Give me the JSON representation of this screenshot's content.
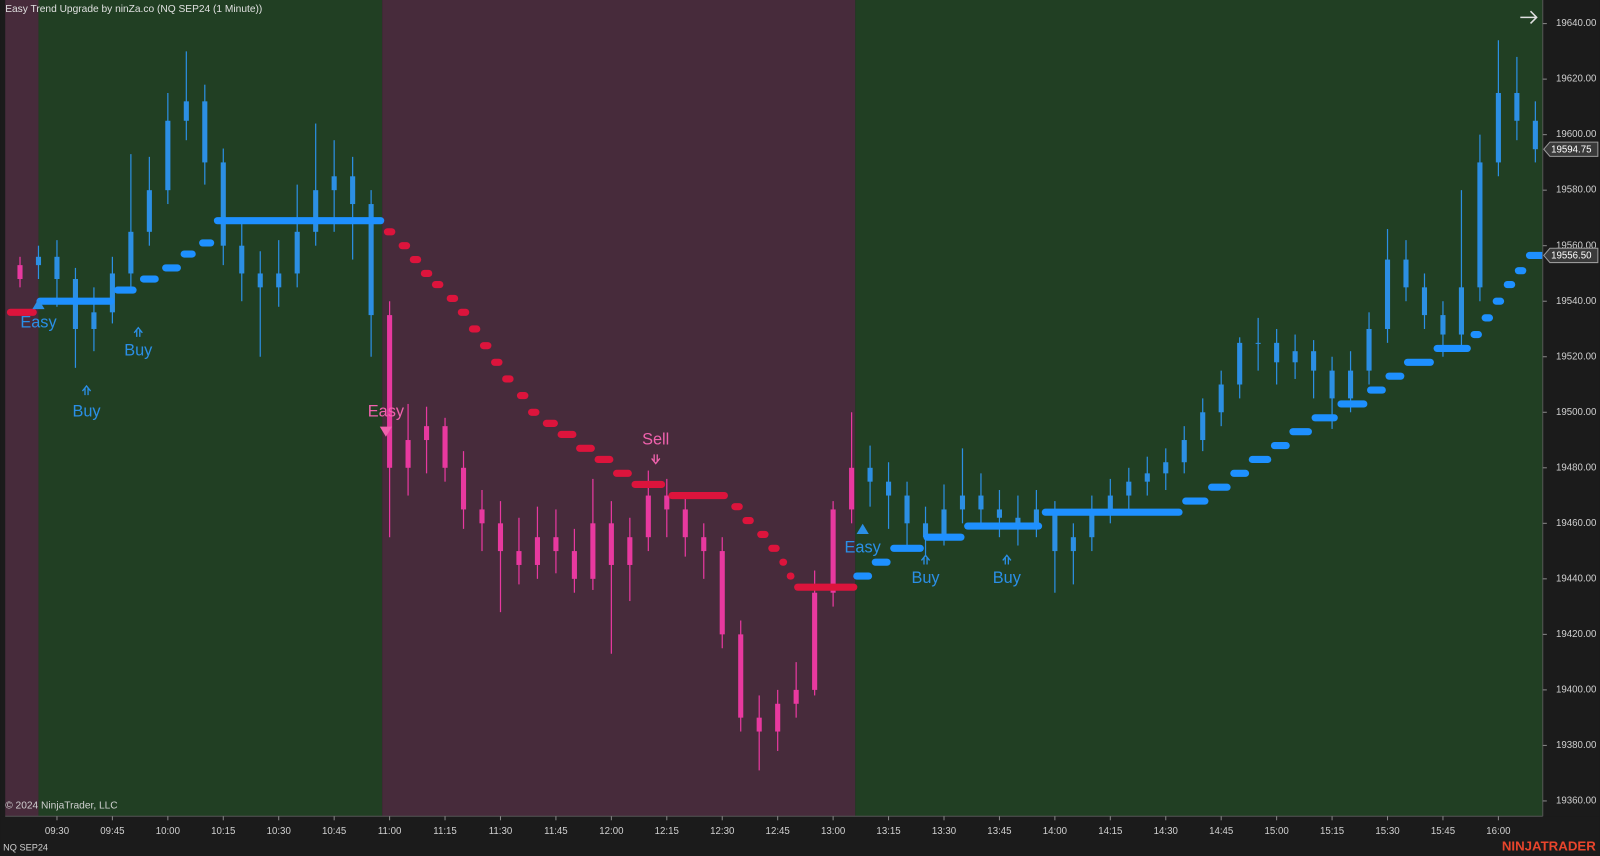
{
  "chart_data": {
    "type": "candlestick",
    "title": "Easy Trend Upgrade by ninZa.co (NQ SEP24 (1 Minute))",
    "copyright": "© 2024 NinjaTrader, LLC",
    "instrument": "NQ SEP24",
    "logo": "NINJATRADER",
    "x": [
      "09:20",
      "09:25",
      "09:30",
      "09:35",
      "09:40",
      "09:45",
      "09:50",
      "09:55",
      "10:00",
      "10:05",
      "10:10",
      "10:15",
      "10:20",
      "10:25",
      "10:30",
      "10:35",
      "10:40",
      "10:45",
      "10:50",
      "10:55",
      "11:00",
      "11:05",
      "11:10",
      "11:15",
      "11:20",
      "11:25",
      "11:30",
      "11:35",
      "11:40",
      "11:45",
      "11:50",
      "11:55",
      "12:00",
      "12:05",
      "12:10",
      "12:15",
      "12:20",
      "12:25",
      "12:30",
      "12:35",
      "12:40",
      "12:45",
      "12:50",
      "12:55",
      "13:00",
      "13:05",
      "13:10",
      "13:15",
      "13:20",
      "13:25",
      "13:30",
      "13:35",
      "13:40",
      "13:45",
      "13:50",
      "13:55",
      "14:00",
      "14:05",
      "14:10",
      "14:15",
      "14:20",
      "14:25",
      "14:30",
      "14:35",
      "14:40",
      "14:45",
      "14:50",
      "14:55",
      "15:00",
      "15:05",
      "15:10",
      "15:15",
      "15:20",
      "15:25",
      "15:30",
      "15:35",
      "15:40",
      "15:45",
      "15:50",
      "15:55",
      "16:00",
      "16:05",
      "16:10"
    ],
    "open": [
      19548,
      19553,
      19556,
      19548,
      19530,
      19536,
      19550,
      19565,
      19580,
      19605,
      19612,
      19590,
      19560,
      19550,
      19545,
      19550,
      19565,
      19580,
      19585,
      19575,
      19535,
      19480,
      19490,
      19495,
      19480,
      19465,
      19460,
      19450,
      19445,
      19455,
      19450,
      19440,
      19460,
      19445,
      19455,
      19470,
      19465,
      19455,
      19450,
      19420,
      19390,
      19385,
      19395,
      19400,
      19435,
      19465,
      19480,
      19475,
      19470,
      19460,
      19455,
      19465,
      19470,
      19465,
      19462,
      19460,
      19465,
      19450,
      19455,
      19465,
      19470,
      19475,
      19478,
      19482,
      19490,
      19500,
      19510,
      19525,
      19525,
      19518,
      19522,
      19515,
      19505,
      19515,
      19530,
      19555,
      19545,
      19535,
      19528,
      19545,
      19590,
      19615,
      19605
    ],
    "high": [
      19556,
      19560,
      19562,
      19552,
      19545,
      19556,
      19593,
      19592,
      19615,
      19630,
      19618,
      19595,
      19570,
      19558,
      19562,
      19582,
      19604,
      19598,
      19592,
      19580,
      19540,
      19503,
      19502,
      19498,
      19486,
      19472,
      19468,
      19462,
      19466,
      19465,
      19458,
      19476,
      19468,
      19462,
      19479,
      19476,
      19470,
      19460,
      19455,
      19425,
      19398,
      19400,
      19410,
      19443,
      19468,
      19500,
      19488,
      19482,
      19475,
      19466,
      19474,
      19487,
      19478,
      19472,
      19470,
      19472,
      19468,
      19460,
      19470,
      19476,
      19480,
      19484,
      19487,
      19495,
      19505,
      19515,
      19527,
      19534,
      19530,
      19528,
      19526,
      19520,
      19522,
      19536,
      19566,
      19562,
      19550,
      19540,
      19580,
      19600,
      19634,
      19628,
      19612
    ],
    "low": [
      19545,
      19548,
      19538,
      19516,
      19522,
      19532,
      19545,
      19560,
      19575,
      19598,
      19582,
      19553,
      19540,
      19520,
      19538,
      19545,
      19560,
      19565,
      19555,
      19520,
      19455,
      19470,
      19478,
      19475,
      19458,
      19450,
      19428,
      19438,
      19440,
      19442,
      19435,
      19436,
      19413,
      19432,
      19450,
      19455,
      19448,
      19440,
      19415,
      19385,
      19371,
      19378,
      19390,
      19398,
      19430,
      19460,
      19466,
      19458,
      19452,
      19448,
      19452,
      19460,
      19458,
      19455,
      19452,
      19455,
      19435,
      19438,
      19450,
      19460,
      19465,
      19470,
      19472,
      19478,
      19486,
      19495,
      19505,
      19515,
      19510,
      19512,
      19505,
      19494,
      19500,
      19510,
      19525,
      19540,
      19530,
      19520,
      19522,
      19540,
      19585,
      19598,
      19590
    ],
    "close": [
      19553,
      19556,
      19548,
      19530,
      19536,
      19550,
      19565,
      19580,
      19605,
      19612,
      19590,
      19560,
      19550,
      19545,
      19550,
      19565,
      19580,
      19585,
      19575,
      19535,
      19480,
      19490,
      19495,
      19480,
      19465,
      19460,
      19450,
      19445,
      19455,
      19450,
      19440,
      19460,
      19445,
      19455,
      19470,
      19465,
      19455,
      19450,
      19420,
      19390,
      19385,
      19395,
      19400,
      19435,
      19465,
      19480,
      19475,
      19470,
      19460,
      19455,
      19465,
      19470,
      19465,
      19462,
      19460,
      19465,
      19450,
      19455,
      19465,
      19470,
      19475,
      19478,
      19482,
      19490,
      19500,
      19510,
      19525,
      19525,
      19518,
      19522,
      19515,
      19505,
      19515,
      19530,
      19555,
      19545,
      19535,
      19528,
      19545,
      19590,
      19615,
      19605,
      19594.75
    ],
    "xlim": [
      "09:16",
      "16:12"
    ],
    "xticks": [
      "09:30",
      "09:45",
      "10:00",
      "10:15",
      "10:30",
      "10:45",
      "11:00",
      "11:15",
      "11:30",
      "11:45",
      "12:00",
      "12:15",
      "12:30",
      "12:45",
      "13:00",
      "13:15",
      "13:30",
      "13:45",
      "14:00",
      "14:15",
      "14:30",
      "14:45",
      "15:00",
      "15:15",
      "15:30",
      "15:45",
      "16:00"
    ],
    "ylim": [
      19354.5,
      19648.5
    ],
    "yticks": [
      {
        "value": 19360,
        "label": "19360.00"
      },
      {
        "value": 19380,
        "label": "19380.00"
      },
      {
        "value": 19400,
        "label": "19400.00"
      },
      {
        "value": 19420,
        "label": "19420.00"
      },
      {
        "value": 19440,
        "label": "19440.00"
      },
      {
        "value": 19460,
        "label": "19460.00"
      },
      {
        "value": 19480,
        "label": "19480.00"
      },
      {
        "value": 19500,
        "label": "19500.00"
      },
      {
        "value": 19520,
        "label": "19520.00"
      },
      {
        "value": 19540,
        "label": "19540.00"
      },
      {
        "value": 19560,
        "label": "19560.00"
      },
      {
        "value": 19580,
        "label": "19580.00"
      },
      {
        "value": 19600,
        "label": "19600.00"
      },
      {
        "value": 19620,
        "label": "19620.00"
      },
      {
        "value": 19640,
        "label": "19640.00"
      }
    ],
    "grid": false,
    "regions": [
      {
        "start": "09:16",
        "end": "09:25",
        "color": "#472b3b",
        "candle_color": "#e8399f",
        "trend_color": "#dc143c"
      },
      {
        "start": "09:25",
        "end": "10:58",
        "color": "#213f23",
        "candle_color": "#2c8fe3",
        "trend_color": "#1e90ff"
      },
      {
        "start": "10:58",
        "end": "13:06",
        "color": "#472b3b",
        "candle_color": "#e8399f",
        "trend_color": "#dc143c"
      },
      {
        "start": "13:06",
        "end": "16:12",
        "color": "#213f23",
        "candle_color": "#2c8fe3",
        "trend_color": "#1e90ff"
      }
    ],
    "trend": {
      "start": [
        "09:17",
        "09:25",
        "09:46",
        "09:53",
        "09:59",
        "10:04",
        "10:09",
        "10:13",
        "10:59",
        "11:03",
        "11:06",
        "11:09",
        "11:12",
        "11:16",
        "11:19",
        "11:22",
        "11:25",
        "11:28",
        "11:31",
        "11:35",
        "11:38",
        "11:42",
        "11:46",
        "11:51",
        "11:56",
        "12:01",
        "12:06",
        "12:16",
        "12:33",
        "12:36",
        "12:40",
        "12:43",
        "12:46",
        "12:48",
        "12:50",
        "13:06",
        "13:11",
        "13:16",
        "13:25",
        "13:36",
        "13:57",
        "14:35",
        "14:42",
        "14:48",
        "14:53",
        "14:59",
        "15:04",
        "15:10",
        "15:17",
        "15:25",
        "15:30",
        "15:35",
        "15:43",
        "15:53",
        "15:56",
        "15:59",
        "16:02",
        "16:05",
        "16:08"
      ],
      "end": [
        "09:24",
        "09:45",
        "09:51",
        "09:57",
        "10:03",
        "10:07",
        "10:12",
        "10:58",
        "11:01",
        "11:05",
        "11:08",
        "11:11",
        "11:14",
        "11:18",
        "11:21",
        "11:24",
        "11:27",
        "11:30",
        "11:33",
        "11:37",
        "11:40",
        "11:45",
        "11:50",
        "11:55",
        "12:00",
        "12:05",
        "12:14",
        "12:31",
        "12:35",
        "12:38",
        "12:42",
        "12:45",
        "12:47",
        "12:49",
        "13:06",
        "13:10",
        "13:15",
        "13:24",
        "13:35",
        "13:56",
        "14:34",
        "14:41",
        "14:47",
        "14:52",
        "14:58",
        "15:03",
        "15:09",
        "15:16",
        "15:24",
        "15:29",
        "15:34",
        "15:42",
        "15:52",
        "15:55",
        "15:58",
        "16:01",
        "16:04",
        "16:07",
        "16:12"
      ],
      "values": [
        19536,
        19540,
        19544,
        19548,
        19552,
        19557,
        19561,
        19569,
        19565,
        19560,
        19555,
        19550,
        19546,
        19541,
        19536,
        19530,
        19524,
        19518,
        19512,
        19506,
        19500,
        19496,
        19492,
        19487,
        19483,
        19478,
        19474,
        19470,
        19466,
        19461,
        19456,
        19451,
        19446,
        19441,
        19437,
        19441,
        19446,
        19451,
        19455,
        19459,
        19464,
        19468,
        19473,
        19478,
        19483,
        19488,
        19493,
        19498,
        19503,
        19508,
        19513,
        19518,
        19523,
        19528,
        19534,
        19540,
        19546,
        19551,
        19556.5
      ]
    },
    "annotations": [
      {
        "text": "Easy",
        "x": "09:25",
        "y": 19539,
        "label_y": 19532,
        "color": "#2b8fe6",
        "marker": "triangle"
      },
      {
        "text": "Buy",
        "x": "09:38",
        "y": 19508,
        "label_y": 19500,
        "color": "#2b8fe6",
        "marker": "double-arrow"
      },
      {
        "text": "Buy",
        "x": "09:52",
        "y": 19529,
        "label_y": 19522,
        "color": "#2b8fe6",
        "marker": "double-arrow"
      },
      {
        "text": "Easy",
        "x": "10:59",
        "y": 19493,
        "label_y": 19500,
        "color": "#f062ad",
        "marker": "triangle"
      },
      {
        "text": "Sell",
        "x": "12:12",
        "y": 19483,
        "label_y": 19490,
        "color": "#f062ad",
        "marker": "double-arrow"
      },
      {
        "text": "Easy",
        "x": "13:08",
        "y": 19458,
        "label_y": 19451,
        "color": "#2b8fe6",
        "marker": "triangle"
      },
      {
        "text": "Buy",
        "x": "13:25",
        "y": 19447,
        "label_y": 19440,
        "color": "#2b8fe6",
        "marker": "double-arrow"
      },
      {
        "text": "Buy",
        "x": "13:47",
        "y": 19447,
        "label_y": 19440,
        "color": "#2b8fe6",
        "marker": "double-arrow"
      }
    ],
    "price_markers": [
      19594.75,
      {
        "value": 19556.5,
        "label": "19556.50"
      }
    ]
  }
}
